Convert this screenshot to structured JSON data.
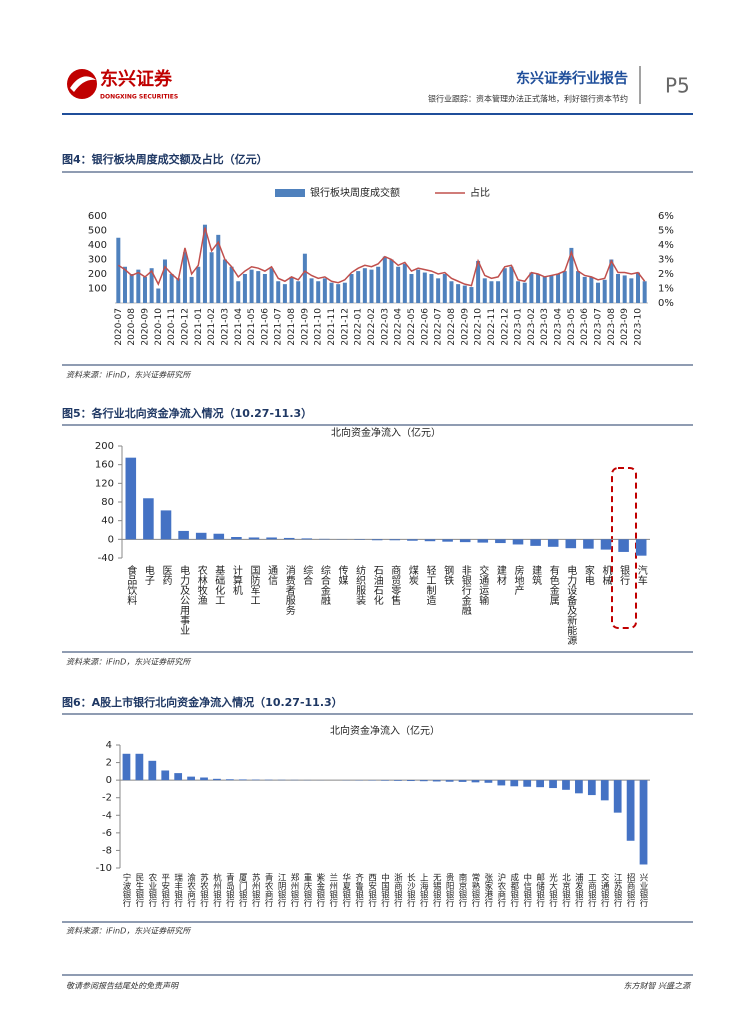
{
  "header": {
    "brand": "东兴证券",
    "brand_en": "DONGXING SECURITIES",
    "report": "东兴证券行业报告",
    "subtitle": "银行业跟踪：资本管理办法正式落地，利好银行资本节约",
    "page": "P5"
  },
  "figures": [
    {
      "title": "图4：银行板块周度成交额及占比（亿元）",
      "source": "资料来源：iFinD，东兴证券研究所"
    },
    {
      "title": "图5：各行业北向资金净流入情况（10.27-11.3）",
      "source": "资料来源：iFinD，东兴证券研究所"
    },
    {
      "title": "图6：A股上市银行北向资金净流入情况（10.27-11.3）",
      "source": "资料来源：iFinD，东兴证券研究所"
    }
  ],
  "footer": {
    "left": "敬请参阅报告结尾处的免责声明",
    "right": "东方财智 兴盛之源"
  },
  "chart_data": [
    {
      "type": "bar",
      "categories": [
        "2020-07",
        null,
        "2020-08",
        null,
        "2020-09",
        null,
        "2020-10",
        null,
        "2020-11",
        null,
        "2020-12",
        null,
        "2021-01",
        null,
        "2021-02",
        null,
        "2021-03",
        null,
        "2021-04",
        null,
        "2021-05",
        null,
        "2021-06",
        null,
        "2021-07",
        null,
        "2021-08",
        null,
        "2021-09",
        null,
        "2021-10",
        null,
        "2021-11",
        null,
        "2021-12",
        null,
        "2022-01",
        null,
        "2022-02",
        null,
        "2022-03",
        null,
        "2022-04",
        null,
        "2022-05",
        null,
        "2022-06",
        null,
        "2022-07",
        null,
        "2022-08",
        null,
        "2022-09",
        null,
        "2022-10",
        null,
        "2022-11",
        null,
        "2022-12",
        null,
        "2023-01",
        null,
        "2023-02",
        null,
        "2023-03",
        null,
        "2023-04",
        null,
        "2023-05",
        null,
        "2023-06",
        null,
        "2023-07",
        null,
        "2023-08",
        null,
        "2023-09",
        null,
        "2023-10",
        null
      ],
      "series": [
        {
          "name": "银行板块周度成交额",
          "color": "#4f81bd",
          "values": [
            450,
            250,
            200,
            230,
            180,
            240,
            100,
            300,
            200,
            170,
            350,
            180,
            250,
            540,
            350,
            470,
            300,
            250,
            150,
            200,
            230,
            220,
            200,
            240,
            150,
            130,
            180,
            150,
            340,
            170,
            150,
            170,
            140,
            130,
            140,
            200,
            220,
            240,
            230,
            250,
            320,
            300,
            250,
            270,
            200,
            230,
            210,
            200,
            170,
            200,
            150,
            130,
            120,
            110,
            290,
            170,
            150,
            150,
            240,
            250,
            150,
            140,
            210,
            200,
            180,
            190,
            200,
            220,
            380,
            220,
            180,
            180,
            140,
            160,
            300,
            200,
            190,
            170,
            210,
            150
          ]
        },
        {
          "name": "占比",
          "color": "#c0504d",
          "axis": "y2",
          "values": [
            2.6,
            2.3,
            1.9,
            2.1,
            1.8,
            2.2,
            1.3,
            2.5,
            2.0,
            1.6,
            3.8,
            2.0,
            2.6,
            5.2,
            3.6,
            4.2,
            3.0,
            2.5,
            1.8,
            2.2,
            2.5,
            2.4,
            2.2,
            2.5,
            1.7,
            1.5,
            1.8,
            1.6,
            2.2,
            1.9,
            1.7,
            1.8,
            1.5,
            1.4,
            1.6,
            2.1,
            2.4,
            2.6,
            2.5,
            2.7,
            3.2,
            3.0,
            2.6,
            2.8,
            2.2,
            2.4,
            2.3,
            2.2,
            2.0,
            2.1,
            1.7,
            1.5,
            1.3,
            1.2,
            2.9,
            1.9,
            1.7,
            1.8,
            2.5,
            2.6,
            1.6,
            1.5,
            2.1,
            2.0,
            1.8,
            1.9,
            2.0,
            2.2,
            3.5,
            2.2,
            1.9,
            1.8,
            1.6,
            1.7,
            2.9,
            2.1,
            2.1,
            2.0,
            2.1,
            1.5
          ]
        }
      ],
      "ylim": [
        0,
        600
      ],
      "yticks": [
        100,
        200,
        300,
        400,
        500,
        600
      ],
      "y2lim": [
        0,
        6
      ],
      "y2ticks": [
        {
          "value": 0,
          "label": "0%"
        },
        {
          "value": 1,
          "label": "1%"
        },
        {
          "value": 2,
          "label": "2%"
        },
        {
          "value": 3,
          "label": "3%"
        },
        {
          "value": 4,
          "label": "4%"
        },
        {
          "value": 5,
          "label": "5%"
        },
        {
          "value": 6,
          "label": "6%"
        }
      ]
    },
    {
      "type": "bar",
      "title": "北向资金净流入（亿元）",
      "color": "#4472c4",
      "categories": [
        "食品饮料",
        "电子",
        "医药",
        "电力及公用事业",
        "农林牧渔",
        "基础化工",
        "计算机",
        "国防军工",
        "通信",
        "消费者服务",
        "综合",
        "综合金融",
        "传媒",
        "纺织服装",
        "石油石化",
        "商贸零售",
        "煤炭",
        "轻工制造",
        "钢铁",
        "非银行金融",
        "交通运输",
        "建材",
        "房地产",
        "建筑",
        "有色金属",
        "电力设备及新能源",
        "家电",
        "机械",
        "银行",
        "汽车"
      ],
      "values": [
        175,
        88,
        62,
        18,
        14,
        12,
        5,
        4,
        4,
        3,
        2,
        1,
        0.5,
        -1,
        -2,
        -2,
        -3,
        -4,
        -5,
        -6,
        -7,
        -8,
        -11,
        -14,
        -16,
        -19,
        -20,
        -22,
        -27,
        -35
      ],
      "ylim": [
        -40,
        200
      ],
      "yticks": [
        -40,
        0,
        40,
        80,
        120,
        160,
        200
      ]
    },
    {
      "type": "bar",
      "title": "北向资金净流入（亿元）",
      "color": "#4472c4",
      "categories": [
        "宁波银行",
        "民生银行",
        "农业银行",
        "平安银行",
        "瑞丰银行",
        "渝农商行",
        "苏农银行",
        "杭州银行",
        "青岛银行",
        "厦门银行",
        "苏州银行",
        "青农商行",
        "江阴银行",
        "郑州银行",
        "重庆银行",
        "紫金银行",
        "兰州银行",
        "华夏银行",
        "齐鲁银行",
        "西安银行",
        "中国银行",
        "浙商银行",
        "长沙银行",
        "上海银行",
        "无锡银行",
        "贵阳银行",
        "南京银行",
        "常熟银行",
        "张家港行",
        "沪农商行",
        "成都银行",
        "中信银行",
        "邮储银行",
        "光大银行",
        "北京银行",
        "浦发银行",
        "工商银行",
        "交通银行",
        "江苏银行",
        "招商银行",
        "兴业银行"
      ],
      "values": [
        3.0,
        3.0,
        2.2,
        1.1,
        0.8,
        0.4,
        0.3,
        0.15,
        0.1,
        0.08,
        0.06,
        0.05,
        0.04,
        0.03,
        0.02,
        0.01,
        0,
        -0.02,
        -0.03,
        -0.04,
        -0.06,
        -0.08,
        -0.1,
        -0.12,
        -0.15,
        -0.18,
        -0.2,
        -0.25,
        -0.3,
        -0.6,
        -0.7,
        -0.75,
        -0.8,
        -0.9,
        -1.1,
        -1.5,
        -1.7,
        -2.3,
        -3.7,
        -6.9,
        -9.6
      ],
      "ylim": [
        -10,
        4
      ],
      "yticks": [
        -10,
        -8,
        -6,
        -4,
        -2,
        0,
        2,
        4
      ]
    }
  ]
}
